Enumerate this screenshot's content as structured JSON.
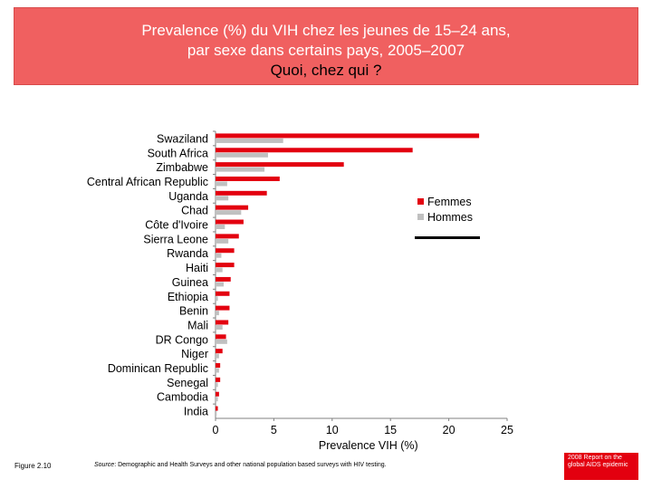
{
  "header": {
    "line1": "Prevalence (%) du VIH chez les jeunes de 15–24 ans,",
    "line2": "par sexe dans certains pays, 2005–2007",
    "line3": "Quoi, chez qui ?"
  },
  "footer": {
    "figure": "Figure 2.10",
    "source_lead": "Source",
    "source_rest": ": Demographic and Health Surveys and other national population based surveys with HIV testing.",
    "badge": "2008 Report on the global AIDS epidemic"
  },
  "colors": {
    "femmes": "#e3000f",
    "hommes": "#c0c0c0",
    "banner": "#f06060"
  },
  "chart_data": {
    "type": "bar",
    "orientation": "horizontal",
    "title": "",
    "xlabel": "Prevalence  VIH (%)",
    "ylabel": "",
    "xlim": [
      0,
      25
    ],
    "xticks": [
      0,
      5,
      10,
      15,
      20,
      25
    ],
    "grid": false,
    "legend_position": "right",
    "categories": [
      "Swaziland",
      "South Africa",
      "Zimbabwe",
      "Central African Republic",
      "Uganda",
      "Chad",
      "Côte d'Ivoire",
      "Sierra Leone",
      "Rwanda",
      "Haiti",
      "Guinea",
      "Ethiopia",
      "Benin",
      "Mali",
      "DR Congo",
      "Niger",
      "Dominican Republic",
      "Senegal",
      "Cambodia",
      "India"
    ],
    "series": [
      {
        "name": "Femmes",
        "color": "#e3000f",
        "values": [
          22.6,
          16.9,
          11.0,
          5.5,
          4.4,
          2.8,
          2.4,
          2.0,
          1.6,
          1.6,
          1.3,
          1.2,
          1.2,
          1.1,
          0.9,
          0.6,
          0.4,
          0.4,
          0.3,
          0.2
        ]
      },
      {
        "name": "Hommes",
        "color": "#c0c0c0",
        "values": [
          5.8,
          4.5,
          4.2,
          1.0,
          1.1,
          2.2,
          0.8,
          1.1,
          0.5,
          0.6,
          0.7,
          0.2,
          0.3,
          0.6,
          1.0,
          0.3,
          0.3,
          0.2,
          0.2,
          0.1
        ]
      }
    ]
  }
}
